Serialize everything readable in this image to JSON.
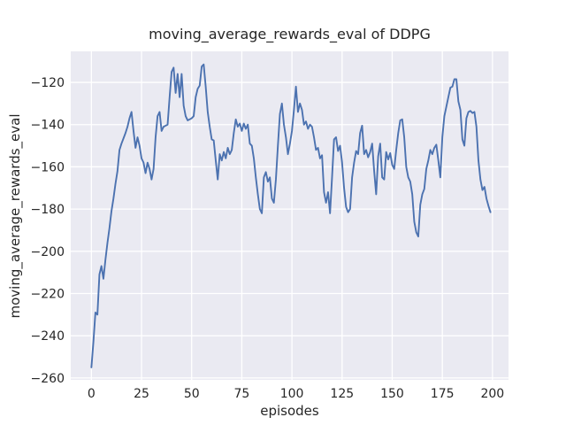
{
  "figure": {
    "background": "#ffffff"
  },
  "chart_data": {
    "type": "line",
    "title": "moving_average_rewards_eval of DDPG",
    "xlabel": "episodes",
    "ylabel": "moving_average_rewards_eval",
    "xlim": [
      -10.3,
      208
    ],
    "ylim": [
      -260.9,
      -105.3
    ],
    "grid": true,
    "legend": null,
    "style": {
      "plot_background": "#eaeaf2",
      "grid_color": "#ffffff",
      "line_color": "#4c72b0",
      "text_color": "#262626"
    },
    "xticks": {
      "values": [
        0,
        25,
        50,
        75,
        100,
        125,
        150,
        175,
        200
      ],
      "labels": [
        "0",
        "25",
        "50",
        "75",
        "100",
        "125",
        "150",
        "175",
        "200"
      ]
    },
    "yticks": {
      "values": [
        -120,
        -140,
        -160,
        -180,
        -200,
        -220,
        -240,
        -260
      ],
      "labels": [
        "−120",
        "−140",
        "−160",
        "−180",
        "−200",
        "−220",
        "−240",
        "−260"
      ]
    },
    "series": [
      {
        "name": "moving_average_rewards_eval",
        "x0": 0,
        "dx": 1,
        "y": [
          -255,
          -243,
          -229,
          -230,
          -211,
          -207,
          -213,
          -204,
          -196,
          -189,
          -181,
          -175,
          -168,
          -162,
          -152,
          -149,
          -146.5,
          -144,
          -141,
          -137,
          -134,
          -143,
          -151,
          -146,
          -150,
          -156,
          -158,
          -163,
          -158,
          -161,
          -166,
          -161,
          -146,
          -136,
          -134,
          -143,
          -141,
          -140.5,
          -140,
          -127,
          -115,
          -113,
          -125,
          -116,
          -127,
          -116,
          -131,
          -136,
          -138,
          -137.5,
          -137,
          -136,
          -127,
          -123,
          -121.5,
          -112.5,
          -111.5,
          -122,
          -134,
          -141,
          -147,
          -147.5,
          -157,
          -166,
          -154,
          -157,
          -153,
          -156,
          -151,
          -154,
          -152,
          -144,
          -137.5,
          -141,
          -139.5,
          -143,
          -139.5,
          -142,
          -140,
          -149,
          -150,
          -156,
          -165,
          -173,
          -180,
          -182,
          -165,
          -162.5,
          -167,
          -165,
          -175,
          -177,
          -166,
          -150,
          -135,
          -130,
          -140,
          -146,
          -154,
          -149,
          -143,
          -133,
          -122,
          -134,
          -130,
          -133,
          -140,
          -138.5,
          -142,
          -140,
          -141,
          -146,
          -152,
          -151,
          -156,
          -154.5,
          -172,
          -177,
          -172,
          -182,
          -165,
          -147,
          -146,
          -152.5,
          -150,
          -158,
          -170,
          -179,
          -181.5,
          -180,
          -165,
          -158,
          -152.5,
          -154,
          -144,
          -140.5,
          -154,
          -152,
          -155.5,
          -153,
          -149,
          -162,
          -173,
          -155,
          -149,
          -165,
          -166,
          -153,
          -156.5,
          -153.5,
          -159,
          -161,
          -152,
          -144,
          -138,
          -137.5,
          -146,
          -160,
          -165,
          -167,
          -173,
          -186,
          -191,
          -193,
          -178,
          -173,
          -170.5,
          -161,
          -157,
          -152,
          -154,
          -151,
          -149.5,
          -157,
          -165,
          -146,
          -136,
          -131.5,
          -127,
          -122.5,
          -122,
          -118.5,
          -118.5,
          -129,
          -133,
          -147,
          -150,
          -137,
          -134,
          -133.5,
          -134.5,
          -134,
          -141,
          -157,
          -166,
          -171,
          -169.5,
          -175,
          -178.5,
          -181.5
        ]
      }
    ]
  }
}
